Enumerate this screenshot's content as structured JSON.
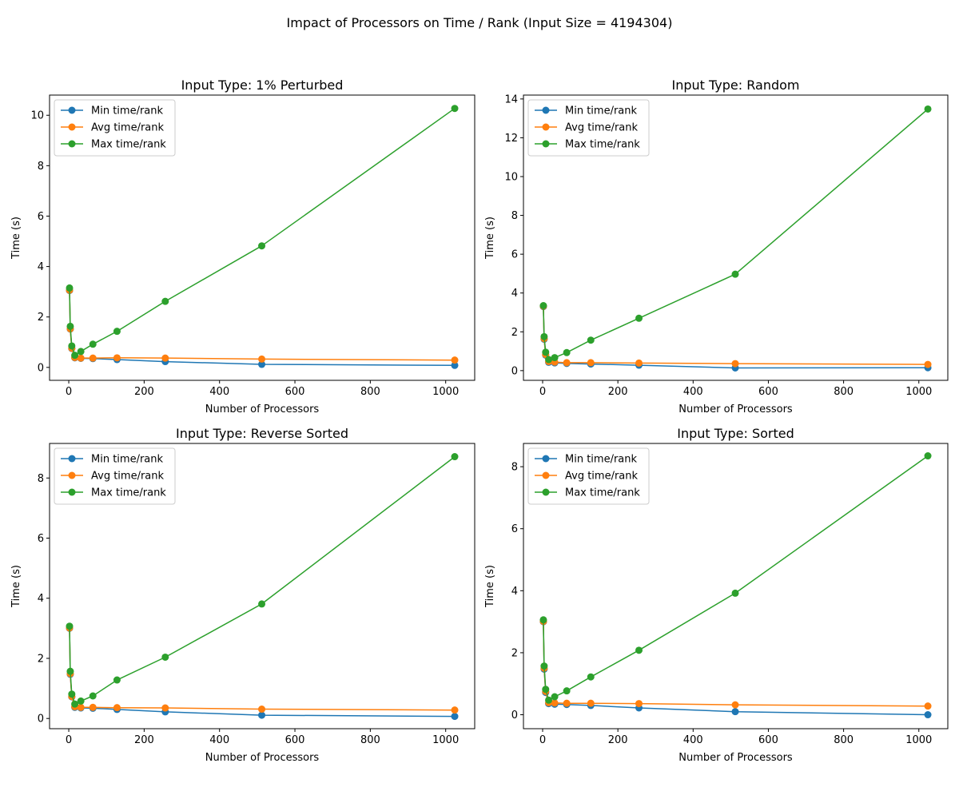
{
  "figure": {
    "title": "Impact of Processors on Time / Rank (Input Size = 4194304)"
  },
  "colors": {
    "Min time/rank": "#1f77b4",
    "Avg time/rank": "#ff7f0e",
    "Max time/rank": "#2ca02c"
  },
  "chart_data": [
    {
      "type": "line",
      "title": "Input Type: 1% Perturbed",
      "xlabel": "Number of Processors",
      "ylabel": "Time (s)",
      "x": [
        2,
        4,
        8,
        16,
        32,
        64,
        128,
        256,
        512,
        1024
      ],
      "xlim": [
        -51,
        1077
      ],
      "ylim": [
        -0.513,
        10.8
      ],
      "xticks": [
        0,
        200,
        400,
        600,
        800,
        1000
      ],
      "yticks": [
        0,
        2,
        4,
        6,
        8,
        10
      ],
      "legend": "upper left",
      "series": [
        {
          "name": "Min time/rank",
          "values": [
            3.05,
            1.52,
            0.75,
            0.38,
            0.36,
            0.35,
            0.31,
            0.23,
            0.12,
            0.08
          ]
        },
        {
          "name": "Avg time/rank",
          "values": [
            3.06,
            1.53,
            0.76,
            0.39,
            0.37,
            0.37,
            0.38,
            0.37,
            0.33,
            0.29
          ]
        },
        {
          "name": "Max time/rank",
          "values": [
            3.15,
            1.63,
            0.85,
            0.48,
            0.63,
            0.92,
            1.43,
            2.62,
            4.82,
            10.27
          ]
        }
      ]
    },
    {
      "type": "line",
      "title": "Input Type: Random",
      "xlabel": "Number of Processors",
      "ylabel": "Time (s)",
      "x": [
        2,
        4,
        8,
        16,
        32,
        64,
        128,
        256,
        512,
        1024
      ],
      "xlim": [
        -51,
        1077
      ],
      "ylim": [
        -0.5,
        14.2
      ],
      "xticks": [
        0,
        200,
        400,
        600,
        800,
        1000
      ],
      "yticks": [
        0,
        2,
        4,
        6,
        8,
        10,
        12,
        14
      ],
      "legend": "upper left",
      "series": [
        {
          "name": "Min time/rank",
          "values": [
            3.3,
            1.62,
            0.8,
            0.43,
            0.4,
            0.37,
            0.34,
            0.28,
            0.14,
            0.15
          ]
        },
        {
          "name": "Avg time/rank",
          "values": [
            3.32,
            1.65,
            0.83,
            0.47,
            0.44,
            0.41,
            0.41,
            0.39,
            0.36,
            0.32
          ]
        },
        {
          "name": "Max time/rank",
          "values": [
            3.35,
            1.75,
            0.95,
            0.57,
            0.67,
            0.93,
            1.57,
            2.7,
            4.97,
            13.48
          ]
        }
      ]
    },
    {
      "type": "line",
      "title": "Input Type: Reverse Sorted",
      "xlabel": "Number of Processors",
      "ylabel": "Time (s)",
      "x": [
        2,
        4,
        8,
        16,
        32,
        64,
        128,
        256,
        512,
        1024
      ],
      "xlim": [
        -51,
        1077
      ],
      "ylim": [
        -0.34,
        9.15
      ],
      "xticks": [
        0,
        200,
        400,
        600,
        800,
        1000
      ],
      "yticks": [
        0,
        2,
        4,
        6,
        8
      ],
      "legend": "upper left",
      "series": [
        {
          "name": "Min time/rank",
          "values": [
            3.0,
            1.47,
            0.72,
            0.37,
            0.35,
            0.34,
            0.3,
            0.22,
            0.11,
            0.07
          ]
        },
        {
          "name": "Avg time/rank",
          "values": [
            3.01,
            1.49,
            0.73,
            0.39,
            0.37,
            0.37,
            0.36,
            0.35,
            0.31,
            0.28
          ]
        },
        {
          "name": "Max time/rank",
          "values": [
            3.07,
            1.57,
            0.81,
            0.48,
            0.58,
            0.75,
            1.28,
            2.04,
            3.81,
            8.71
          ]
        }
      ]
    },
    {
      "type": "line",
      "title": "Input Type: Sorted",
      "xlabel": "Number of Processors",
      "ylabel": "Time (s)",
      "x": [
        2,
        4,
        8,
        16,
        32,
        64,
        128,
        256,
        512,
        1024
      ],
      "xlim": [
        -51,
        1077
      ],
      "ylim": [
        -0.45,
        8.75
      ],
      "xticks": [
        0,
        200,
        400,
        600,
        800,
        1000
      ],
      "yticks": [
        0,
        2,
        4,
        6,
        8
      ],
      "legend": "upper left",
      "series": [
        {
          "name": "Min time/rank",
          "values": [
            3.0,
            1.47,
            0.72,
            0.36,
            0.34,
            0.33,
            0.3,
            0.22,
            0.1,
            0.0
          ]
        },
        {
          "name": "Avg time/rank",
          "values": [
            3.01,
            1.5,
            0.75,
            0.39,
            0.38,
            0.37,
            0.37,
            0.36,
            0.32,
            0.28
          ]
        },
        {
          "name": "Max time/rank",
          "values": [
            3.06,
            1.57,
            0.82,
            0.47,
            0.58,
            0.77,
            1.22,
            2.08,
            3.92,
            8.35
          ]
        }
      ]
    }
  ]
}
